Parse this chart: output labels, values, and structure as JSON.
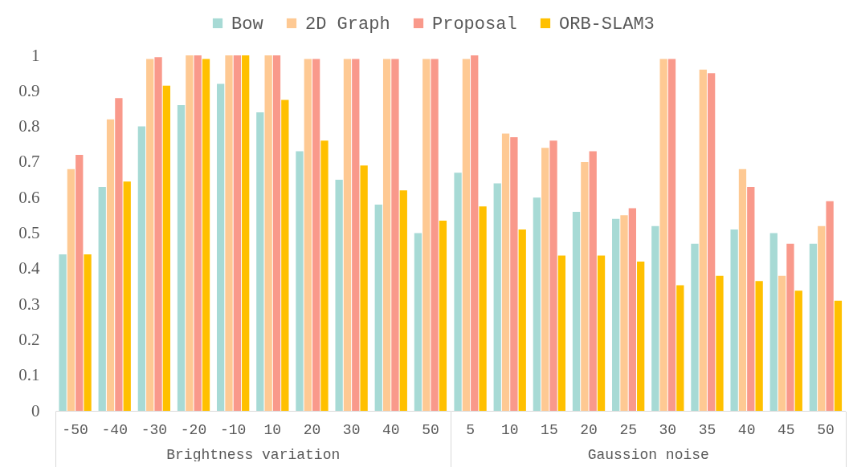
{
  "chart_data": [
    {
      "type": "bar",
      "xlabel": "Brightness variation",
      "categories": [
        "-50",
        "-40",
        "-30",
        "-20",
        "-10",
        "10",
        "20",
        "30",
        "40",
        "50"
      ],
      "series": [
        {
          "name": "Bow",
          "color": "#a7dad5",
          "values": [
            0.44,
            0.63,
            0.8,
            0.86,
            0.92,
            0.84,
            0.73,
            0.65,
            0.58,
            0.5
          ]
        },
        {
          "name": "2D Graph",
          "color": "#fec993",
          "values": [
            0.68,
            0.82,
            0.99,
            1,
            1,
            1,
            0.99,
            0.99,
            0.99,
            0.99
          ]
        },
        {
          "name": "Proposal",
          "color": "#f9998b",
          "values": [
            0.72,
            0.88,
            0.995,
            1,
            1,
            1,
            0.99,
            0.99,
            0.99,
            0.99
          ]
        },
        {
          "name": "ORB-SLAM3",
          "color": "#ffc000",
          "values": [
            0.44,
            0.645,
            0.915,
            0.99,
            1,
            0.875,
            0.76,
            0.69,
            0.62,
            0.535
          ]
        }
      ],
      "ylim": [
        0,
        1
      ],
      "yticks": [
        0,
        0.1,
        0.2,
        0.3,
        0.4,
        0.5,
        0.6,
        0.7,
        0.8,
        0.9,
        1
      ],
      "legend": "top"
    },
    {
      "type": "bar",
      "xlabel": "Gaussion noise",
      "categories": [
        "5",
        "10",
        "15",
        "20",
        "25",
        "30",
        "35",
        "40",
        "45",
        "50"
      ],
      "series": [
        {
          "name": "Bow",
          "color": "#a7dad5",
          "values": [
            0.67,
            0.64,
            0.6,
            0.56,
            0.54,
            0.52,
            0.47,
            0.51,
            0.5,
            0.47
          ]
        },
        {
          "name": "2D Graph",
          "color": "#fec993",
          "values": [
            0.99,
            0.78,
            0.74,
            0.7,
            0.55,
            0.99,
            0.96,
            0.68,
            0.38,
            0.52
          ]
        },
        {
          "name": "Proposal",
          "color": "#f9998b",
          "values": [
            1,
            0.77,
            0.76,
            0.73,
            0.57,
            0.99,
            0.95,
            0.63,
            0.47,
            0.59
          ]
        },
        {
          "name": "ORB-SLAM3",
          "color": "#ffc000",
          "values": [
            0.575,
            0.51,
            0.437,
            0.437,
            0.42,
            0.353,
            0.38,
            0.365,
            0.338,
            0.31
          ]
        }
      ],
      "ylim": [
        0,
        1
      ],
      "tick_labels": "x"
    }
  ]
}
